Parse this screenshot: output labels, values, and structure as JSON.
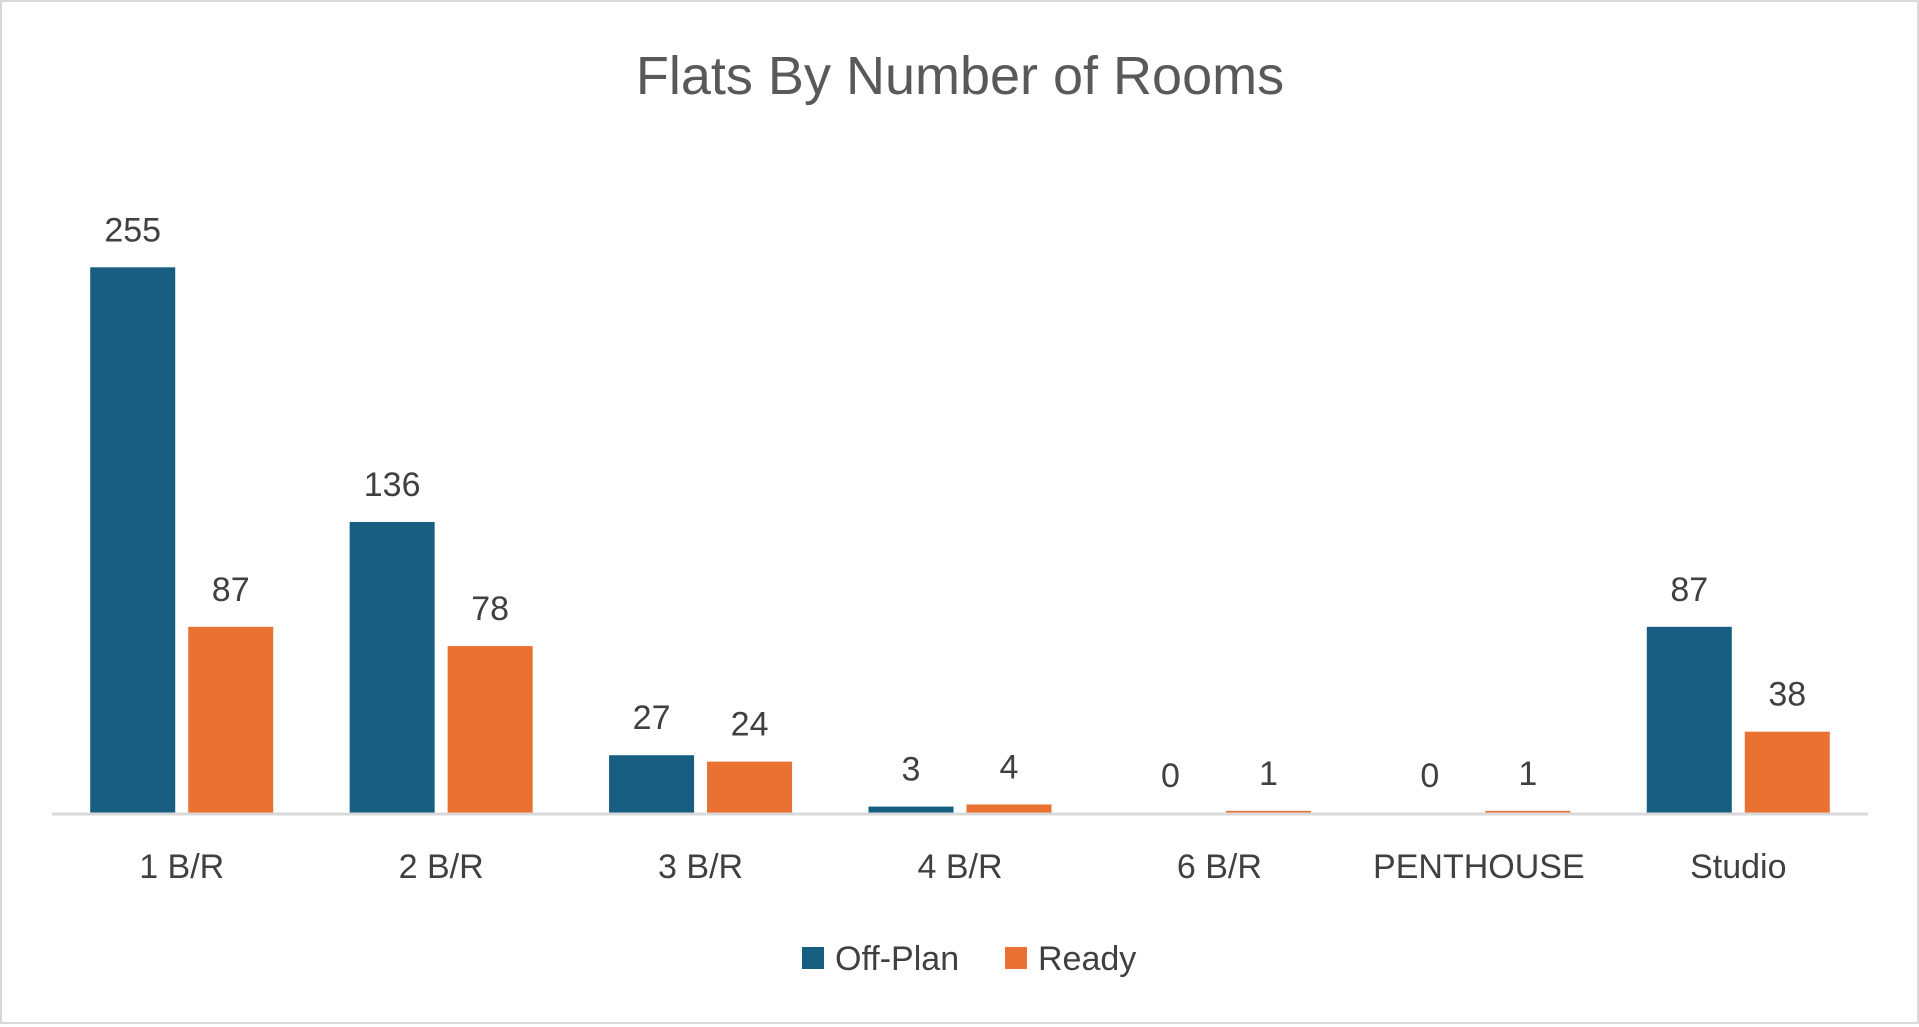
{
  "colors": {
    "off_plan": "#175e80",
    "ready": "#e97132",
    "axis": "#d9d9d9",
    "text": "#404040",
    "title": "#595959"
  },
  "chart_data": {
    "type": "bar",
    "title": "Flats By Number of Rooms",
    "xlabel": "",
    "ylabel": "",
    "categories": [
      "1 B/R",
      "2 B/R",
      "3 B/R",
      "4 B/R",
      "6 B/R",
      "PENTHOUSE",
      "Studio"
    ],
    "series": [
      {
        "name": "Off-Plan",
        "values": [
          255,
          136,
          27,
          3,
          0,
          0,
          87
        ]
      },
      {
        "name": "Ready",
        "values": [
          87,
          78,
          24,
          4,
          1,
          1,
          38
        ]
      }
    ],
    "ylim": [
      0,
      255
    ],
    "grid": false,
    "legend": "bottom",
    "data_labels": true
  }
}
